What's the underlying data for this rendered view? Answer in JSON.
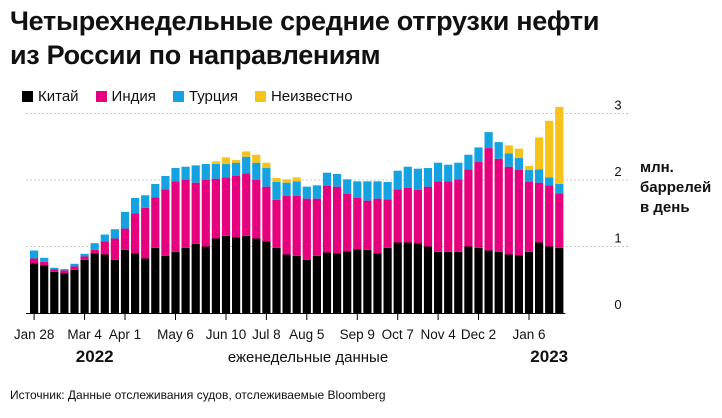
{
  "title_lines": [
    "Четырехнедельные средние отгрузки нефти",
    "из России по направлениям"
  ],
  "unit_lines": [
    "млн.",
    "баррелей",
    "в день"
  ],
  "source": "Источник: Данные отслеживания судов, отслеживаемые Bloomberg",
  "chart_data": {
    "type": "bar",
    "stacked": true,
    "title": "Четырехнедельные средние отгрузки нефти из России по направлениям",
    "ylabel": "млн. баррелей в день",
    "ylim": [
      0,
      3
    ],
    "yticks": [
      0,
      1,
      2,
      3
    ],
    "grid": true,
    "legend_position": "top-left",
    "x_tick_labels": [
      {
        "label": "Jan 28",
        "index": 0
      },
      {
        "label": "Mar 4",
        "index": 5
      },
      {
        "label": "Apr 1",
        "index": 9
      },
      {
        "label": "May 6",
        "index": 14
      },
      {
        "label": "Jun 10",
        "index": 19
      },
      {
        "label": "Jul 8",
        "index": 23
      },
      {
        "label": "Aug 5",
        "index": 27
      },
      {
        "label": "Sep 9",
        "index": 32
      },
      {
        "label": "Oct 7",
        "index": 36
      },
      {
        "label": "Nov 4",
        "index": 40
      },
      {
        "label": "Dec 2",
        "index": 44
      },
      {
        "label": "Jan 6",
        "index": 49
      }
    ],
    "year_labels": [
      {
        "label": "2022",
        "index": 6
      },
      {
        "label": "2023",
        "index": 51
      }
    ],
    "xlabel": "еженедельные данные",
    "series": [
      {
        "name": "Китай",
        "color": "#000000",
        "values": [
          0.75,
          0.72,
          0.62,
          0.6,
          0.65,
          0.8,
          0.9,
          0.88,
          0.8,
          0.95,
          0.9,
          0.82,
          0.98,
          0.86,
          0.92,
          0.98,
          1.04,
          1.0,
          1.12,
          1.16,
          1.14,
          1.16,
          1.12,
          1.08,
          0.98,
          0.88,
          0.86,
          0.8,
          0.86,
          0.91,
          0.9,
          0.93,
          0.96,
          0.95,
          0.9,
          0.98,
          1.06,
          1.06,
          1.05,
          1.0,
          0.92,
          0.92,
          0.92,
          1.0,
          0.98,
          0.94,
          0.92,
          0.88,
          0.87,
          0.92,
          1.06,
          1.0,
          0.98
        ]
      },
      {
        "name": "Индия",
        "color": "#e6007e",
        "values": [
          0.07,
          0.05,
          0.04,
          0.04,
          0.05,
          0.05,
          0.05,
          0.2,
          0.32,
          0.32,
          0.6,
          0.76,
          0.76,
          1.0,
          1.06,
          1.02,
          0.92,
          1.0,
          0.9,
          0.88,
          0.92,
          0.94,
          0.88,
          0.82,
          0.72,
          0.88,
          0.9,
          0.92,
          0.86,
          1.0,
          1.0,
          0.86,
          0.77,
          0.74,
          0.82,
          0.73,
          0.8,
          0.82,
          0.8,
          0.9,
          1.06,
          1.06,
          1.09,
          1.16,
          1.29,
          1.54,
          1.4,
          1.32,
          1.28,
          1.05,
          0.9,
          0.92,
          0.82
        ]
      },
      {
        "name": "Турция",
        "color": "#14a2e0",
        "values": [
          0.12,
          0.06,
          0.02,
          0.02,
          0.04,
          0.04,
          0.1,
          0.1,
          0.14,
          0.25,
          0.23,
          0.19,
          0.2,
          0.2,
          0.2,
          0.2,
          0.26,
          0.24,
          0.22,
          0.2,
          0.2,
          0.25,
          0.26,
          0.28,
          0.27,
          0.2,
          0.22,
          0.18,
          0.2,
          0.2,
          0.19,
          0.22,
          0.25,
          0.29,
          0.26,
          0.26,
          0.28,
          0.32,
          0.32,
          0.28,
          0.28,
          0.25,
          0.25,
          0.22,
          0.22,
          0.24,
          0.25,
          0.2,
          0.18,
          0.18,
          0.2,
          0.12,
          0.14
        ]
      },
      {
        "name": "Неизвестно",
        "color": "#f5c31a",
        "values": [
          0,
          0,
          0,
          0,
          0,
          0,
          0,
          0,
          0,
          0,
          0,
          0,
          0,
          0,
          0,
          0,
          0,
          0,
          0.04,
          0.1,
          0.04,
          0.08,
          0.12,
          0.08,
          0.06,
          0.05,
          0.06,
          0,
          0,
          0,
          0,
          0,
          0,
          0,
          0,
          0,
          0,
          0,
          0,
          0,
          0,
          0,
          0,
          0,
          0,
          0,
          0,
          0.12,
          0.14,
          0.06,
          0.48,
          0.85,
          1.16
        ]
      }
    ]
  }
}
